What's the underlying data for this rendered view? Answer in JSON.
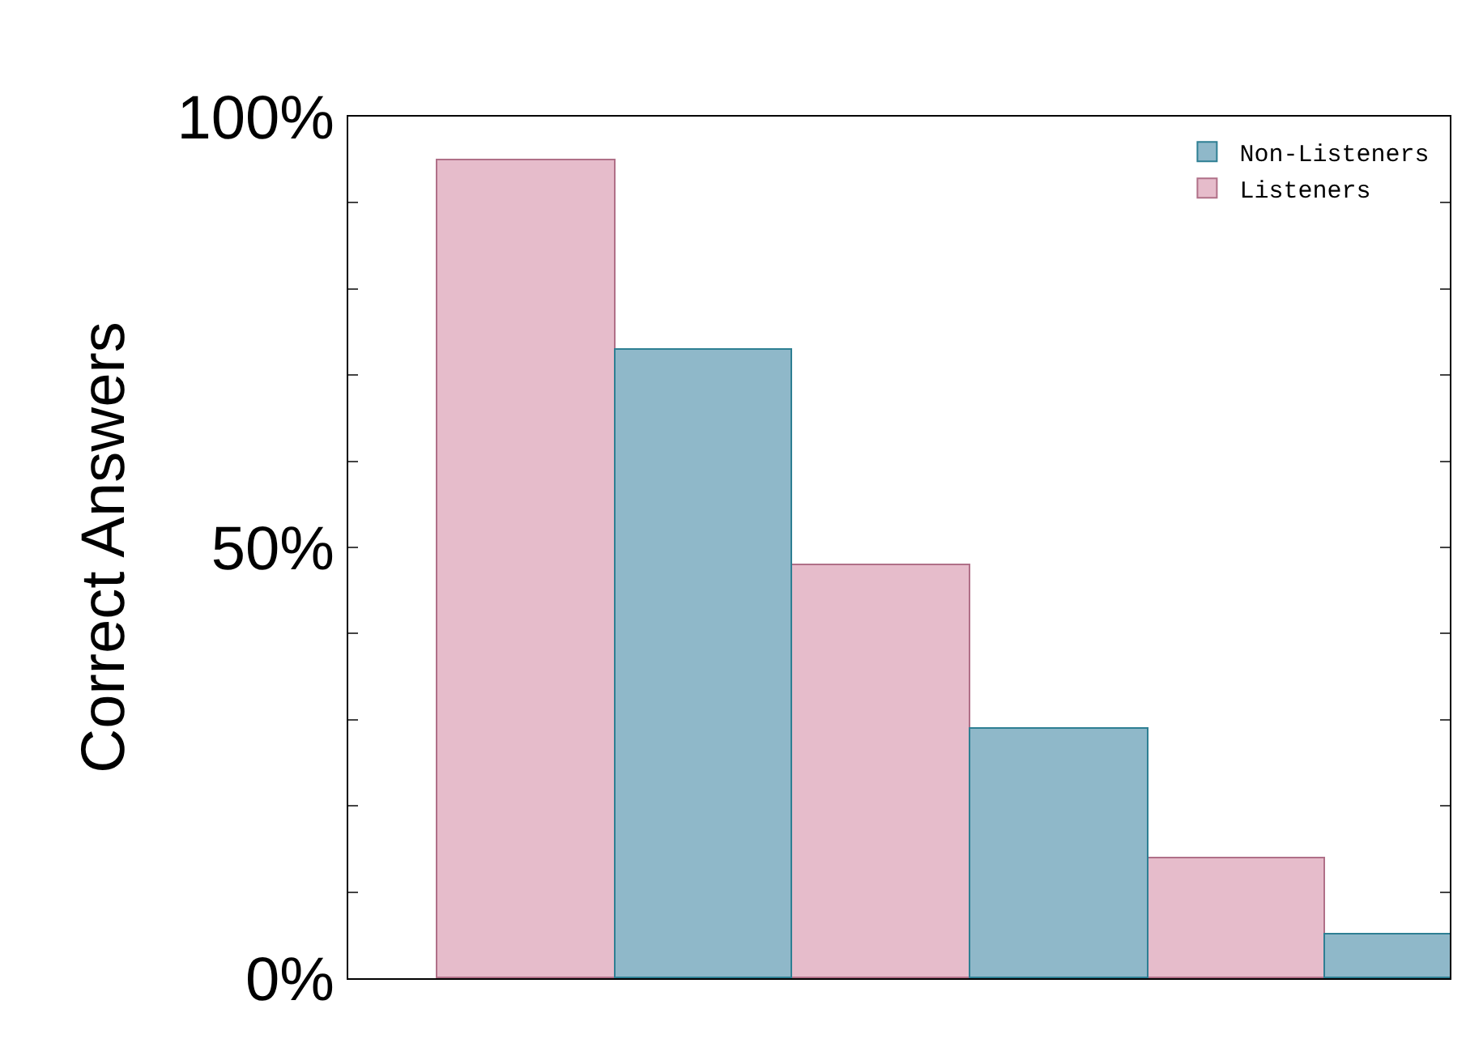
{
  "chart_data": {
    "type": "bar",
    "ylabel": "Correct Answers",
    "categories": [
      null,
      null,
      null
    ],
    "series": [
      {
        "name": "Listeners",
        "color": "#e6bccb",
        "values": [
          95,
          48,
          14
        ]
      },
      {
        "name": "Non-Listeners",
        "color": "#8fb8c9",
        "values": [
          73,
          29,
          5
        ]
      }
    ],
    "ylim": [
      0,
      100
    ],
    "yticks": [
      {
        "value": 0,
        "label": "0%"
      },
      {
        "value": 10,
        "label": null
      },
      {
        "value": 20,
        "label": null
      },
      {
        "value": 30,
        "label": null
      },
      {
        "value": 40,
        "label": null
      },
      {
        "value": 50,
        "label": "50%"
      },
      {
        "value": 60,
        "label": null
      },
      {
        "value": 70,
        "label": null
      },
      {
        "value": 80,
        "label": null
      },
      {
        "value": 90,
        "label": null
      },
      {
        "value": 100,
        "label": "100%"
      }
    ],
    "grid": false,
    "legend": "top right"
  }
}
